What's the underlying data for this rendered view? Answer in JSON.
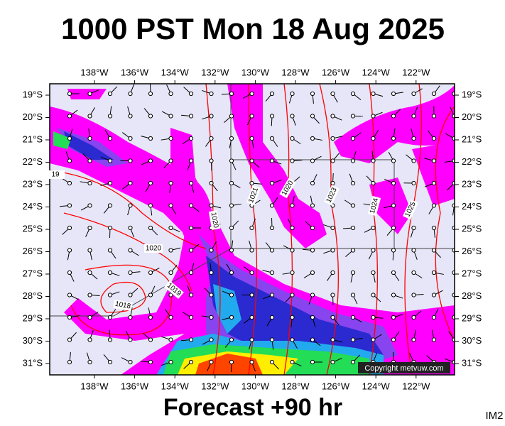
{
  "header": {
    "title": "1000 PST Mon 18 Aug 2025"
  },
  "map": {
    "lon_labels": [
      "138°W",
      "136°W",
      "134°W",
      "132°W",
      "130°W",
      "128°W",
      "126°W",
      "124°W",
      "122°W"
    ],
    "lat_labels": [
      "19°S",
      "20°S",
      "21°S",
      "22°S",
      "23°S",
      "24°S",
      "25°S",
      "26°S",
      "27°S",
      "28°S",
      "29°S",
      "30°S",
      "31°S"
    ],
    "contour_labels": [
      "19",
      "1020",
      "1020",
      "1019",
      "1018",
      "1021",
      "1020",
      "1023",
      "1024",
      "1025"
    ],
    "copyright": "Copyright metvuw.com"
  },
  "footer": {
    "forecast": "Forecast +90 hr",
    "code": "IM2"
  }
}
